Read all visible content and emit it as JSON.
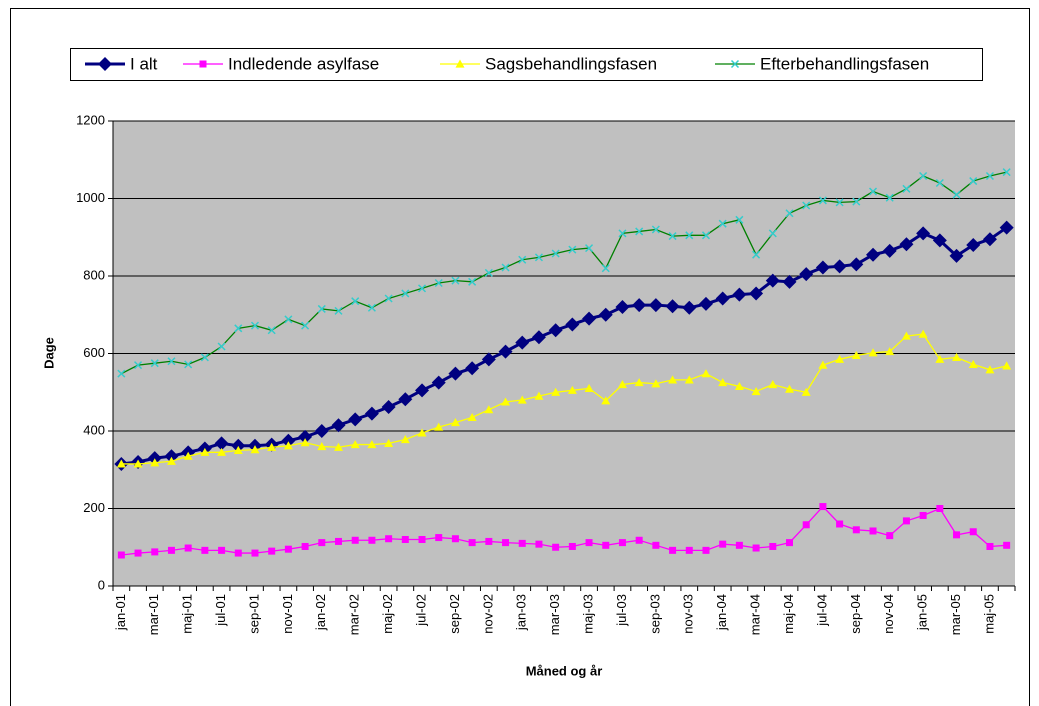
{
  "chart_data": {
    "type": "line",
    "xlabel": "Måned og år",
    "ylabel": "Dage",
    "categories": [
      "jan-01",
      null,
      "mar-01",
      null,
      "maj-01",
      null,
      "jul-01",
      null,
      "sep-01",
      null,
      "nov-01",
      null,
      "jan-02",
      null,
      "mar-02",
      null,
      "maj-02",
      null,
      "jul-02",
      null,
      "sep-02",
      null,
      "nov-02",
      null,
      "jan-03",
      null,
      "mar-03",
      null,
      "maj-03",
      null,
      "jul-03",
      null,
      "sep-03",
      null,
      "nov-03",
      null,
      "jan-04",
      null,
      "mar-04",
      null,
      "maj-04",
      null,
      "jul-04",
      null,
      "sep-04",
      null,
      "nov-04",
      null,
      "jan-05",
      null,
      "mar-05",
      null,
      "maj-05",
      null
    ],
    "ylim": [
      0,
      1200
    ],
    "yticks": [
      0,
      200,
      400,
      600,
      800,
      1000,
      1200
    ],
    "grid": true,
    "legend": "top",
    "series": [
      {
        "name": "I alt",
        "color": "#000080",
        "marker_color": "#000080",
        "marker": "diamond",
        "values": [
          315,
          320,
          330,
          335,
          345,
          355,
          368,
          362,
          362,
          365,
          375,
          385,
          400,
          415,
          430,
          445,
          462,
          482,
          505,
          525,
          548,
          562,
          585,
          605,
          628,
          642,
          660,
          675,
          690,
          700,
          720,
          725,
          725,
          722,
          718,
          728,
          742,
          752,
          755,
          788,
          785,
          805,
          822,
          825,
          830,
          855,
          865,
          882,
          910,
          892,
          852,
          880,
          895,
          925
        ]
      },
      {
        "name": "Indledende asylfase",
        "color": "#ff00ff",
        "marker_color": "#ff00ff",
        "marker": "square",
        "values": [
          80,
          85,
          88,
          92,
          98,
          92,
          92,
          85,
          85,
          90,
          95,
          102,
          112,
          115,
          118,
          118,
          122,
          120,
          120,
          125,
          122,
          112,
          115,
          112,
          110,
          108,
          100,
          102,
          112,
          105,
          112,
          118,
          105,
          92,
          92,
          92,
          108,
          105,
          98,
          102,
          112,
          158,
          205,
          160,
          145,
          142,
          130,
          168,
          182,
          200,
          132,
          140,
          102,
          105
        ]
      },
      {
        "name": "Sagsbehandlingsfasen",
        "color": "#ffff00",
        "marker_color": "#ffff00",
        "marker": "triangle",
        "values": [
          315,
          315,
          318,
          322,
          335,
          345,
          345,
          350,
          352,
          358,
          362,
          370,
          360,
          358,
          365,
          365,
          368,
          378,
          395,
          410,
          422,
          435,
          455,
          475,
          480,
          490,
          500,
          505,
          510,
          478,
          520,
          525,
          522,
          532,
          532,
          548,
          525,
          515,
          502,
          520,
          508,
          500,
          570,
          585,
          595,
          602,
          605,
          645,
          650,
          585,
          590,
          572,
          558,
          568
        ]
      },
      {
        "name": "Efterbehandlingsfasen",
        "color": "#008000",
        "marker_color": "#33cccc",
        "marker": "x",
        "values": [
          548,
          570,
          575,
          580,
          572,
          590,
          618,
          665,
          672,
          660,
          688,
          672,
          715,
          710,
          735,
          718,
          742,
          755,
          768,
          782,
          788,
          785,
          808,
          822,
          842,
          848,
          858,
          868,
          872,
          820,
          910,
          915,
          920,
          903,
          905,
          905,
          935,
          945,
          855,
          910,
          962,
          982,
          995,
          990,
          992,
          1018,
          1002,
          1025,
          1058,
          1040,
          1010,
          1045,
          1058,
          1068
        ]
      }
    ]
  }
}
